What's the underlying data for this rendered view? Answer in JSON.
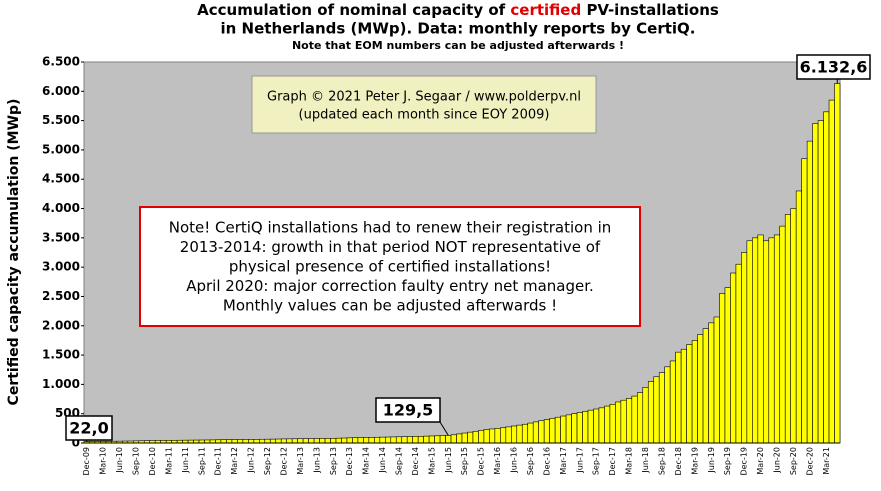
{
  "chart_data": {
    "type": "bar",
    "title_parts": [
      "Accumulation  of nominal  capacity of ",
      "certified",
      " PV-installations"
    ],
    "title_line2": "in Netherlands (MWp). Data: monthly  reports by CertiQ.",
    "subtitle": "Note that EOM numbers can be adjusted afterwards  !",
    "y_label": "Certified  capacity accumulation (MWp)",
    "annotations": [
      "Graph © 2021 Peter J. Segaar / www.polderpv.nl",
      "(updated each month since EOY 2009)"
    ],
    "note": [
      "Note! CertiQ installations had to renew their registration in",
      "2013-2014:  growth in that period NOT representative of",
      "physical presence of certified installations!",
      "April 2020:  major correction faulty entry net manager.",
      "Monthly values can be adjusted afterwards !"
    ],
    "color": "#ffff00",
    "grid": false,
    "ylim": [
      0,
      6500
    ],
    "yticks": [
      0,
      500,
      {
        "value": 1000,
        "label": "1.000"
      },
      {
        "value": 1500,
        "label": "1.500"
      },
      {
        "value": 2000,
        "label": "2.000"
      },
      {
        "value": 2500,
        "label": "2.500"
      },
      {
        "value": 3000,
        "label": "3.000"
      },
      {
        "value": 3500,
        "label": "3.500"
      },
      {
        "value": 4000,
        "label": "4.000"
      },
      {
        "value": 4500,
        "label": "4.500"
      },
      {
        "value": 5000,
        "label": "5.000"
      },
      {
        "value": 5500,
        "label": "5.500"
      },
      {
        "value": 6000,
        "label": "6.000"
      },
      {
        "value": 6500,
        "label": "6.500"
      }
    ],
    "categories": [
      "Dec-09",
      null,
      null,
      "Mar-10",
      null,
      null,
      "Jun-10",
      null,
      null,
      "Sep-10",
      null,
      null,
      "Dec-10",
      null,
      null,
      "Mar-11",
      null,
      null,
      "Jun-11",
      null,
      null,
      "Sep-11",
      null,
      null,
      "Dec-11",
      null,
      null,
      "Mar-12",
      null,
      null,
      "Jun-12",
      null,
      null,
      "Sep-12",
      null,
      null,
      "Dec-12",
      null,
      null,
      "Mar-13",
      null,
      null,
      "Jun-13",
      null,
      null,
      "Sep-13",
      null,
      null,
      "Dec-13",
      null,
      null,
      "Mar-14",
      null,
      null,
      "Jun-14",
      null,
      null,
      "Sep-14",
      null,
      null,
      "Dec-14",
      null,
      null,
      "Mar-15",
      null,
      null,
      "Jun-15",
      null,
      null,
      "Sep-15",
      null,
      null,
      "Dec-15",
      null,
      null,
      "Mar-16",
      null,
      null,
      "Jun-16",
      null,
      null,
      "Sep-16",
      null,
      null,
      "Dec-16",
      null,
      null,
      "Mar-17",
      null,
      null,
      "Jun-17",
      null,
      null,
      "Sep-17",
      null,
      null,
      "Dec-17",
      null,
      null,
      "Mar-18",
      null,
      null,
      "Jun-18",
      null,
      null,
      "Sep-18",
      null,
      null,
      "Dec-18",
      null,
      null,
      "Mar-19",
      null,
      null,
      "Jun-19",
      null,
      null,
      "Sep-19",
      null,
      null,
      "Dec-19",
      null,
      null,
      "Mar-20",
      null,
      null,
      "Jun-20",
      null,
      null,
      "Sep-20",
      null,
      null,
      "Dec-20",
      null,
      null,
      "Mar-21",
      null,
      null
    ],
    "values": [
      22.0,
      24,
      25,
      27,
      28,
      30,
      31,
      33,
      34,
      36,
      38,
      40,
      42,
      43,
      44,
      45,
      46,
      47,
      48,
      49,
      50,
      51,
      52,
      53,
      55,
      56,
      57,
      58,
      59,
      60,
      62,
      63,
      64,
      65,
      66,
      68,
      70,
      71,
      72,
      73,
      74,
      75,
      76,
      77,
      78,
      80,
      82,
      85,
      88,
      90,
      92,
      94,
      96,
      98,
      100,
      102,
      104,
      106,
      108,
      110,
      112,
      114,
      117,
      120,
      123,
      126,
      129.5,
      140,
      155,
      170,
      185,
      200,
      215,
      230,
      240,
      250,
      260,
      275,
      290,
      305,
      320,
      340,
      360,
      380,
      400,
      420,
      440,
      460,
      480,
      500,
      520,
      540,
      560,
      580,
      600,
      630,
      660,
      700,
      730,
      760,
      800,
      860,
      950,
      1050,
      1130,
      1200,
      1300,
      1400,
      1550,
      1600,
      1680,
      1750,
      1850,
      1950,
      2050,
      2150,
      2550,
      2650,
      2900,
      3050,
      3250,
      3450,
      3500,
      3550,
      3450,
      3500,
      3550,
      3700,
      3900,
      4000,
      4300,
      4850,
      5150,
      5450,
      5500,
      5650,
      5850,
      6132.6
    ],
    "value_labels": [
      "22,0",
      null,
      null,
      null,
      null,
      null,
      null,
      null,
      null,
      null,
      null,
      null,
      null,
      null,
      null,
      null,
      null,
      null,
      null,
      null,
      null,
      null,
      null,
      null,
      null,
      null,
      null,
      null,
      null,
      null,
      null,
      null,
      null,
      null,
      null,
      null,
      null,
      null,
      null,
      null,
      null,
      null,
      null,
      null,
      null,
      null,
      null,
      null,
      null,
      null,
      null,
      null,
      null,
      null,
      null,
      null,
      null,
      null,
      null,
      null,
      null,
      null,
      null,
      null,
      null,
      null,
      "129,5",
      null,
      null,
      null,
      null,
      null,
      null,
      null,
      null,
      null,
      null,
      null,
      null,
      null,
      null,
      null,
      null,
      null,
      null,
      null,
      null,
      null,
      null,
      null,
      null,
      null,
      null,
      null,
      null,
      null,
      null,
      null,
      null,
      null,
      null,
      null,
      null,
      null,
      null,
      null,
      null,
      null,
      null,
      null,
      null,
      null,
      null,
      null,
      null,
      null,
      null,
      null,
      null,
      null,
      null,
      null,
      null,
      null,
      null,
      null,
      null,
      null,
      null,
      null,
      null,
      null,
      null,
      null,
      null,
      null,
      null,
      "6.132,6"
    ]
  }
}
